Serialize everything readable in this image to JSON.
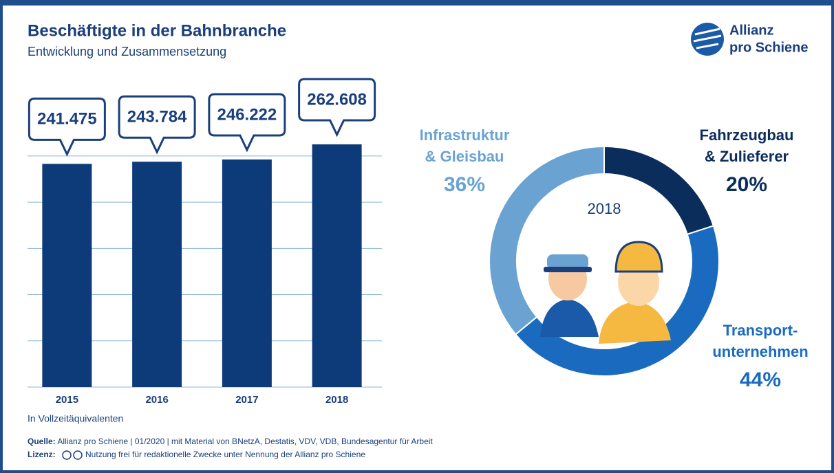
{
  "header": {
    "title": "Beschäftigte in der Bahnbranche",
    "subtitle": "Entwicklung und Zusammensetzung"
  },
  "logo": {
    "lines": [
      "Allianz",
      "pro Schiene"
    ]
  },
  "chart_data": [
    {
      "type": "bar",
      "categories": [
        "2015",
        "2016",
        "2017",
        "2018"
      ],
      "values": [
        241475,
        243784,
        246222,
        262608
      ],
      "value_labels": [
        "241.475",
        "243.784",
        "246.222",
        "262.608"
      ],
      "color": "#0d3b7a",
      "ylim": [
        0,
        270000
      ],
      "yticks": [
        0,
        50000,
        100000,
        150000,
        200000,
        250000
      ],
      "grid": true,
      "note": "In Vollzeitäquivalenten"
    },
    {
      "type": "donut",
      "center_label": "2018",
      "categories": [
        [
          "Fahrzeugbau",
          "& Zulieferer"
        ],
        [
          "Transport-",
          "unternehmen"
        ],
        [
          "Infrastruktur",
          "& Gleisbau"
        ]
      ],
      "values": [
        20,
        44,
        36
      ],
      "value_labels": [
        "20%",
        "44%",
        "36%"
      ],
      "colors": [
        "#0b2d5b",
        "#1a6bbf",
        "#6aa3d2"
      ]
    }
  ],
  "footer": {
    "source": {
      "label": "Quelle:",
      "text": "Allianz pro Schiene | 01/2020 | mit Material von BNetzA, Destatis, VDV, VDB, Bundesagentur für Arbeit"
    },
    "license": {
      "label": "Lizenz:",
      "text": "Nutzung frei für redaktionelle Zwecke unter Nennung der Allianz pro Schiene"
    }
  }
}
